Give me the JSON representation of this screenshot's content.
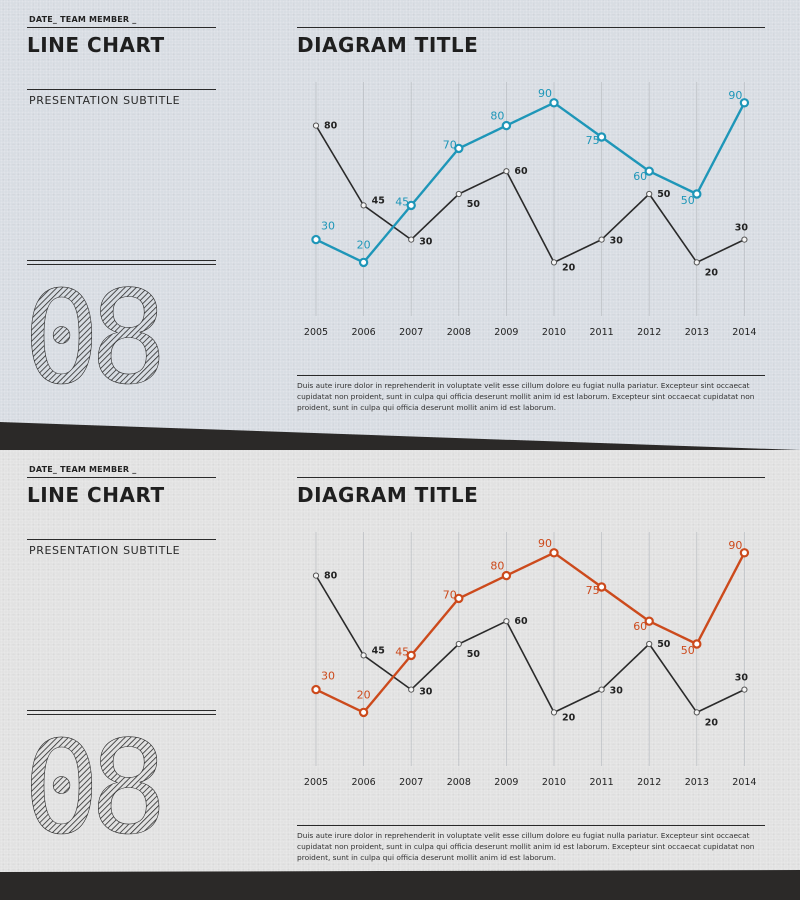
{
  "slides": [
    {
      "date_team": "DATE_ TEAM MEMBER _",
      "title": "LINE CHART",
      "subtitle": "PRESENTATION  SUBTITLE",
      "number": "08",
      "diagram_title": "DIAGRAM TITLE",
      "paragraph": "Duis aute irure dolor in reprehenderit in voluptate velit esse cillum dolore eu fugiat nulla pariatur. Excepteur sint occaecat cupidatat non proident, sunt in culpa qui officia deserunt mollit anim id est laborum. Excepteur sint occaecat cupidatat non proident, sunt in culpa qui officia deserunt mollit anim id est laborum.",
      "accent_color": "#1e96b8"
    },
    {
      "date_team": "DATE_ TEAM MEMBER _",
      "title": "LINE CHART",
      "subtitle": "PRESENTATION  SUBTITLE",
      "number": "08",
      "diagram_title": "DIAGRAM TITLE",
      "paragraph": "Duis aute irure dolor in reprehenderit in voluptate velit esse cillum dolore eu fugiat nulla pariatur. Excepteur sint occaecat cupidatat non proident, sunt in culpa qui officia deserunt mollit anim id est laborum. Excepteur sint occaecat cupidatat non proident, sunt in culpa qui officia deserunt mollit anim id est laborum.",
      "accent_color": "#cc4a1c"
    }
  ],
  "chart_data": [
    {
      "type": "line",
      "title": "DIAGRAM TITLE",
      "xlabel": "",
      "ylabel": "",
      "categories": [
        "2005",
        "2006",
        "2007",
        "2008",
        "2009",
        "2010",
        "2011",
        "2012",
        "2013",
        "2014"
      ],
      "ylim": [
        0,
        100
      ],
      "grid": true,
      "series": [
        {
          "name": "dark",
          "color": "#2a2a2a",
          "values": [
            80,
            45,
            30,
            50,
            60,
            20,
            30,
            50,
            20,
            30
          ]
        },
        {
          "name": "accent",
          "color": "#1e96b8",
          "values": [
            30,
            20,
            45,
            70,
            80,
            90,
            75,
            60,
            50,
            90
          ]
        }
      ]
    },
    {
      "type": "line",
      "title": "DIAGRAM TITLE",
      "xlabel": "",
      "ylabel": "",
      "categories": [
        "2005",
        "2006",
        "2007",
        "2008",
        "2009",
        "2010",
        "2011",
        "2012",
        "2013",
        "2014"
      ],
      "ylim": [
        0,
        100
      ],
      "grid": true,
      "series": [
        {
          "name": "dark",
          "color": "#2a2a2a",
          "values": [
            80,
            45,
            30,
            50,
            60,
            20,
            30,
            50,
            20,
            30
          ]
        },
        {
          "name": "accent",
          "color": "#cc4a1c",
          "values": [
            30,
            20,
            45,
            70,
            80,
            90,
            75,
            60,
            50,
            90
          ]
        }
      ]
    }
  ]
}
